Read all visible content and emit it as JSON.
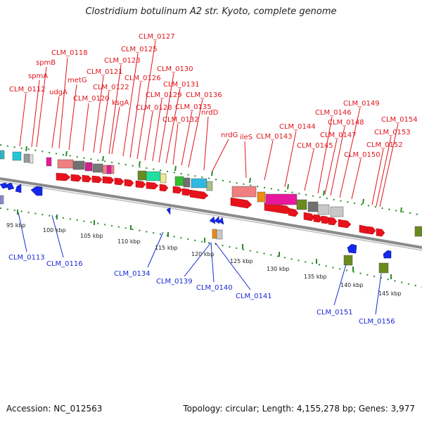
{
  "title": "Clostridium botulinum A2 str. Kyoto, complete genome",
  "footer": {
    "accession": "Accession: NC_012563",
    "summary": "Topology: circular; Length: 4,155,278 bp; Genes: 3,977"
  },
  "colors": {
    "top_label": "#e0141c",
    "bottom_label": "#1a2ad6",
    "backbone": "#8a8a8a",
    "tick": "#2a8a2a",
    "forward_gene": "#e8121c",
    "reverse_gene": "#1428e8"
  },
  "top_labels": [
    "CLM_0112",
    "spmA",
    "spmB",
    "udgA",
    "CLM_0118",
    "metG",
    "CLM_0120",
    "CLM_0121",
    "CLM_0122",
    "CLM_0123",
    "ksgA",
    "CLM_0125",
    "CLM_0126",
    "CLM_0127",
    "CLM_0128",
    "CLM_0129",
    "CLM_0130",
    "CLM_0131",
    "CLM_0132",
    "CLM_0135",
    "CLM_0136",
    "nrdD",
    "nrdG",
    "ileS",
    "CLM_0143",
    "CLM_0144",
    "CLM_0145",
    "CLM_0146",
    "CLM_0147",
    "CLM_0148",
    "CLM_0149",
    "CLM_0150",
    "CLM_0152",
    "CLM_0153",
    "CLM_0154"
  ],
  "bottom_labels": [
    "CLM_0113",
    "CLM_0116",
    "CLM_0134",
    "CLM_0139",
    "CLM_0140",
    "CLM_0141",
    "CLM_0151",
    "CLM_0156"
  ],
  "scale_ticks": [
    "95 kbp",
    "100 kbp",
    "105 kbp",
    "110 kbp",
    "115 kbp",
    "120 kbp",
    "125 kbp",
    "130 kbp",
    "135 kbp",
    "140 kbp",
    "145 kbp"
  ]
}
